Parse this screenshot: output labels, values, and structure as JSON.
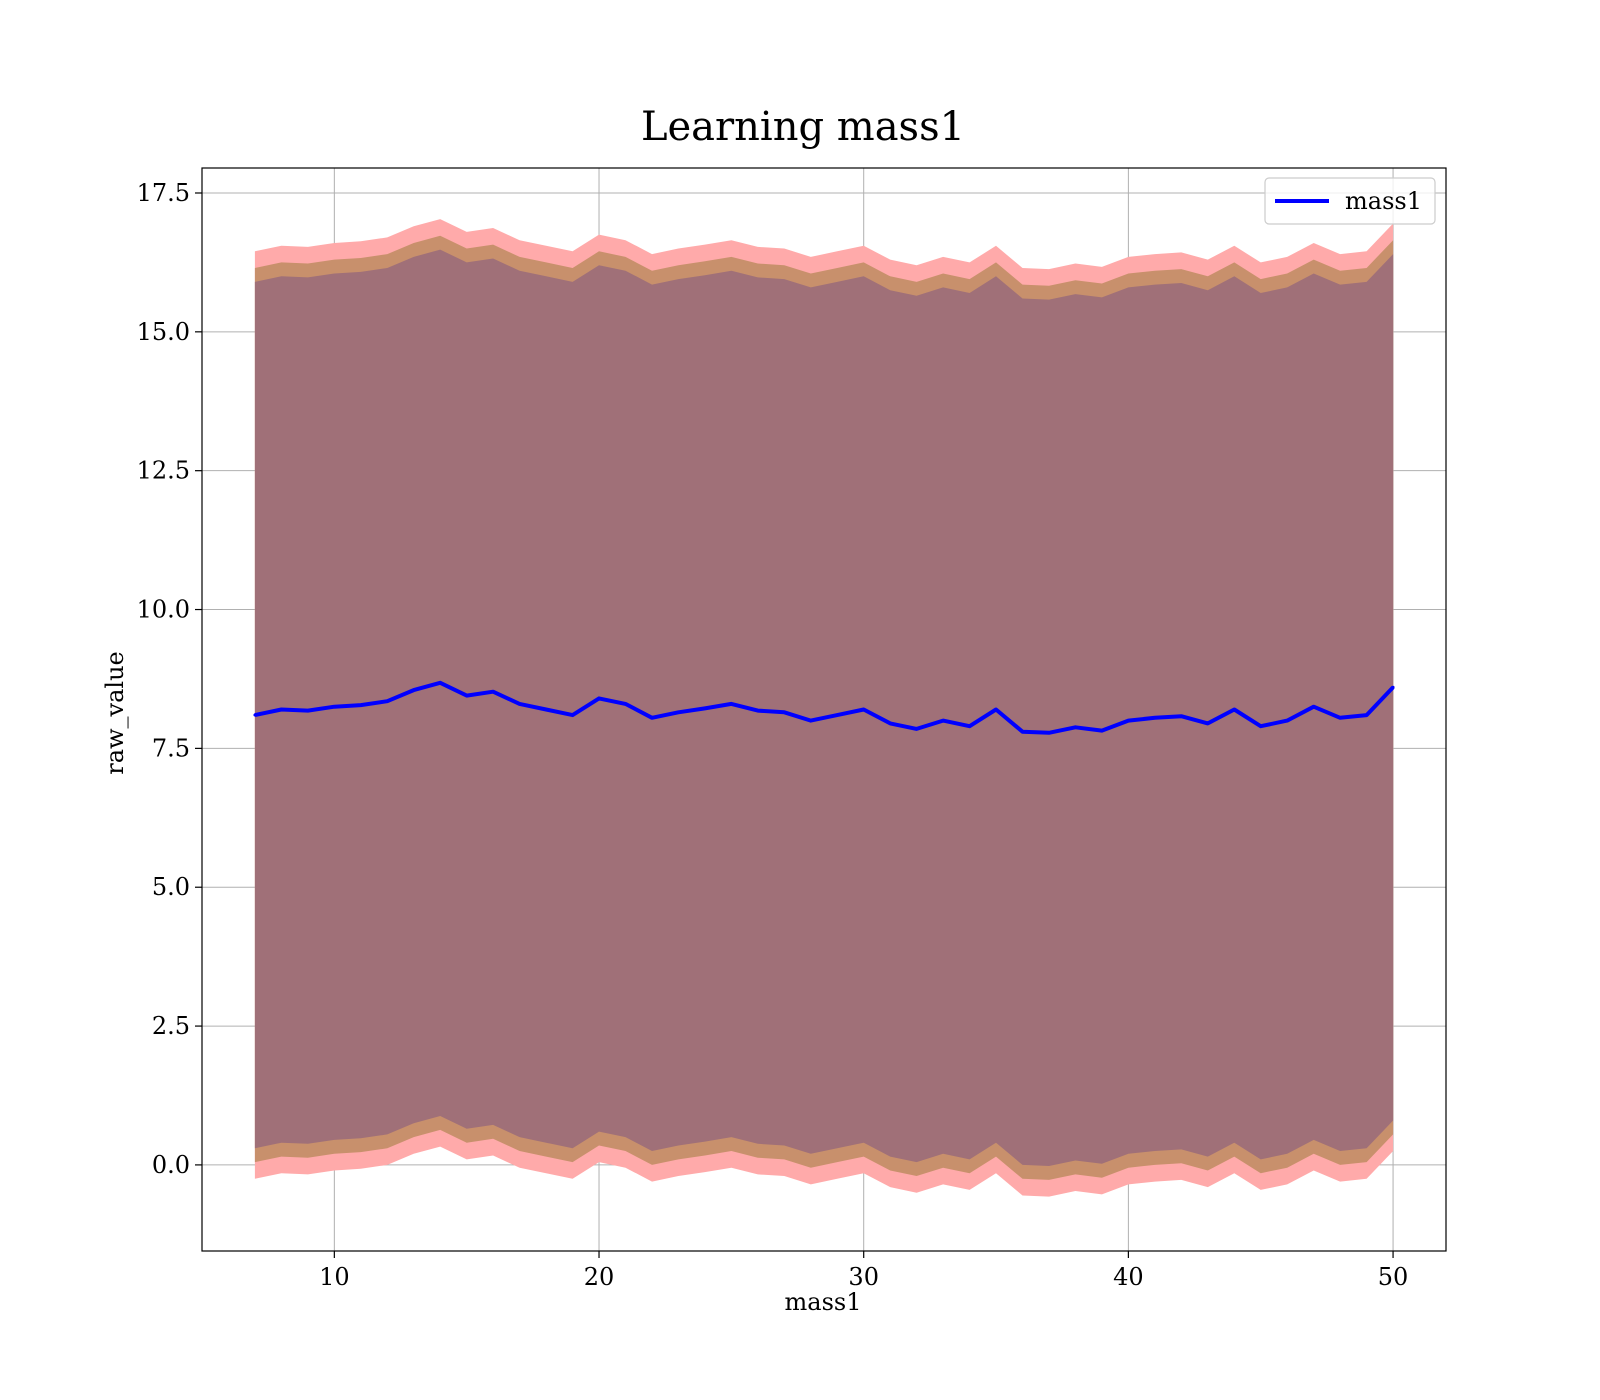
{
  "chart_data": {
    "type": "area",
    "title": "Learning mass1",
    "xlabel": "mass1",
    "ylabel": "raw_value",
    "xlim": [
      5,
      52
    ],
    "ylim": [
      -1.55,
      17.95
    ],
    "xticks": [
      10,
      20,
      30,
      40,
      50
    ],
    "yticks": [
      0.0,
      2.5,
      5.0,
      7.5,
      10.0,
      12.5,
      15.0,
      17.5
    ],
    "xtick_labels": [
      "10",
      "20",
      "30",
      "40",
      "50"
    ],
    "ytick_labels": [
      "0.0",
      "2.5",
      "5.0",
      "7.5",
      "10.0",
      "12.5",
      "15.0",
      "17.5"
    ],
    "grid": true,
    "legend_position": "top-right",
    "colors": {
      "line": "#0000ff",
      "band_outer": "#ffaaaa",
      "band_middle": "#c8906c",
      "band_inner": "#a07078",
      "grid": "#b0b0b0"
    },
    "series": [
      {
        "name": "mass1",
        "x": [
          7,
          8,
          9,
          10,
          11,
          12,
          13,
          14,
          15,
          16,
          17,
          18,
          19,
          20,
          21,
          22,
          23,
          24,
          25,
          26,
          27,
          28,
          29,
          30,
          31,
          32,
          33,
          34,
          35,
          36,
          37,
          38,
          39,
          40,
          41,
          42,
          43,
          44,
          45,
          46,
          47,
          48,
          49,
          50
        ],
        "y": [
          8.1,
          8.2,
          8.18,
          8.25,
          8.28,
          8.35,
          8.55,
          8.68,
          8.45,
          8.52,
          8.3,
          8.2,
          8.1,
          8.4,
          8.3,
          8.05,
          8.15,
          8.22,
          8.3,
          8.18,
          8.15,
          8.0,
          8.1,
          8.2,
          7.95,
          7.85,
          8.0,
          7.9,
          8.2,
          7.8,
          7.78,
          7.88,
          7.82,
          8.0,
          8.05,
          8.08,
          7.95,
          8.2,
          7.9,
          8.0,
          8.25,
          8.05,
          8.1,
          8.6
        ],
        "bands": [
          {
            "level": "outer",
            "offset": 8.35
          },
          {
            "level": "middle",
            "offset": 8.05
          },
          {
            "level": "inner",
            "offset": 7.8
          }
        ]
      }
    ]
  }
}
